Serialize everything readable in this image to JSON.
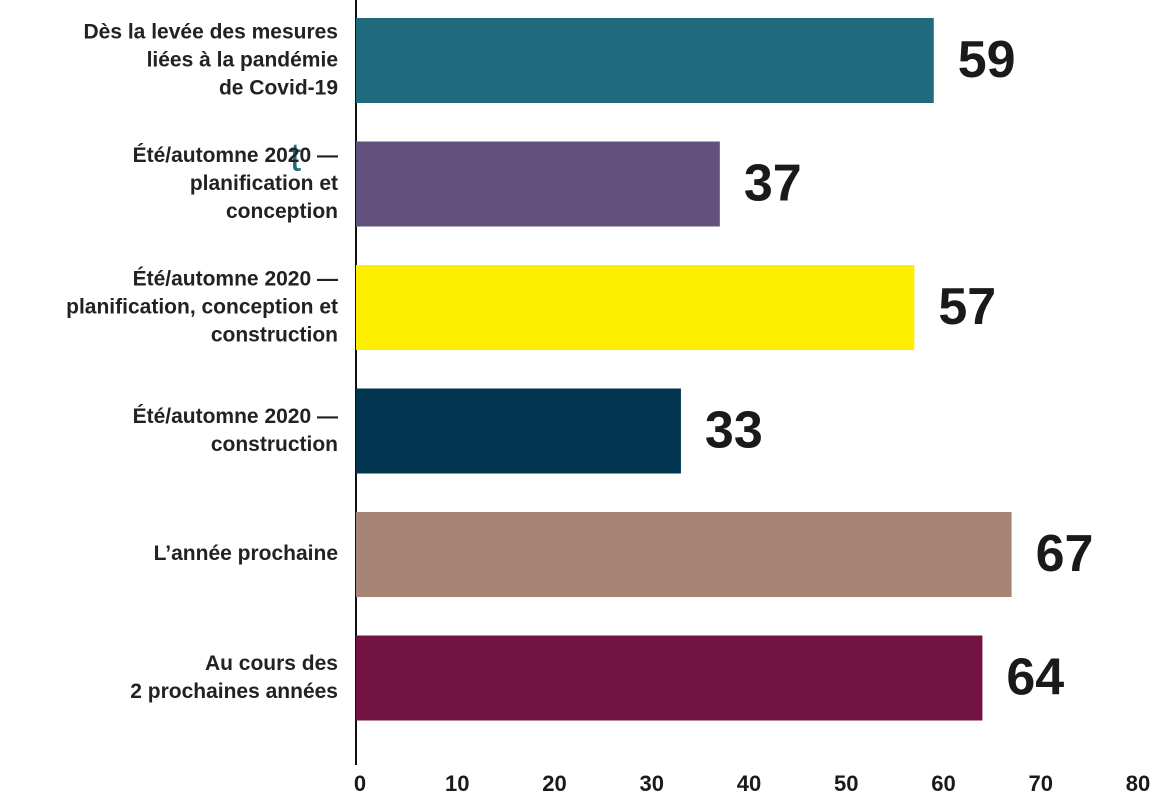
{
  "chart_data": {
    "type": "bar",
    "orientation": "horizontal",
    "categories": [
      "Dès la levée des mesures\nliées à la pandémie\nde Covid-19",
      "Été/automne 2020 —\nplanification et\nconception",
      "Été/automne 2020 —\nplanification, conception et\nconstruction",
      "Été/automne 2020 —\nconstruction",
      "L’année prochaine",
      "Au cours des\n2 prochaines années"
    ],
    "values": [
      59,
      37,
      57,
      33,
      67,
      64
    ],
    "colors": [
      "#206a7e",
      "#62507d",
      "#fdee00",
      "#00344f",
      "#a68475",
      "#721342"
    ],
    "xlim": [
      0,
      80
    ],
    "xticks": [
      0,
      10,
      20,
      30,
      40,
      50,
      60,
      70,
      80
    ],
    "fragment": "t"
  }
}
